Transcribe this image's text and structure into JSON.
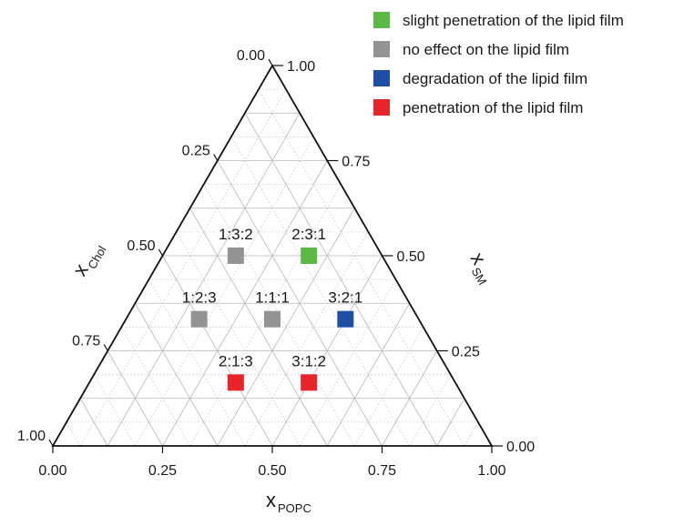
{
  "chart_data": {
    "type": "scatter",
    "subtype": "ternary",
    "axes": {
      "bottom": {
        "label": "x",
        "label_sub": "POPC",
        "ticks": [
          "0.00",
          "0.25",
          "0.50",
          "0.75",
          "1.00"
        ]
      },
      "left": {
        "label": "x",
        "label_sub": "Chol",
        "ticks": [
          "0.00",
          "0.25",
          "0.50",
          "0.75",
          "1.00"
        ]
      },
      "right": {
        "label": "x",
        "label_sub": "SM",
        "ticks": [
          "1.00",
          "0.75",
          "0.50",
          "0.25",
          "0.00"
        ]
      }
    },
    "grid": true,
    "legend_position": "top-right",
    "legend": [
      {
        "label": "slight penetration of the lipid film",
        "color": "#5cb946"
      },
      {
        "label": "no effect on the lipid film",
        "color": "#939393"
      },
      {
        "label": "degradation of the lipid film",
        "color": "#1f4fa5"
      },
      {
        "label": "penetration of the lipid film",
        "color": "#e8232a"
      }
    ],
    "points": [
      {
        "label": "1:3:2",
        "popc": 0.1667,
        "sm": 0.5,
        "chol": 0.3333,
        "color": "#939393"
      },
      {
        "label": "2:3:1",
        "popc": 0.3333,
        "sm": 0.5,
        "chol": 0.1667,
        "color": "#5cb946"
      },
      {
        "label": "1:2:3",
        "popc": 0.1667,
        "sm": 0.3333,
        "chol": 0.5,
        "color": "#939393"
      },
      {
        "label": "1:1:1",
        "popc": 0.3333,
        "sm": 0.3333,
        "chol": 0.3333,
        "color": "#939393"
      },
      {
        "label": "3:2:1",
        "popc": 0.5,
        "sm": 0.3333,
        "chol": 0.1667,
        "color": "#1f4fa5"
      },
      {
        "label": "2:1:3",
        "popc": 0.3333,
        "sm": 0.1667,
        "chol": 0.5,
        "color": "#e8232a"
      },
      {
        "label": "3:1:2",
        "popc": 0.5,
        "sm": 0.1667,
        "chol": 0.3333,
        "color": "#e8232a"
      }
    ]
  }
}
